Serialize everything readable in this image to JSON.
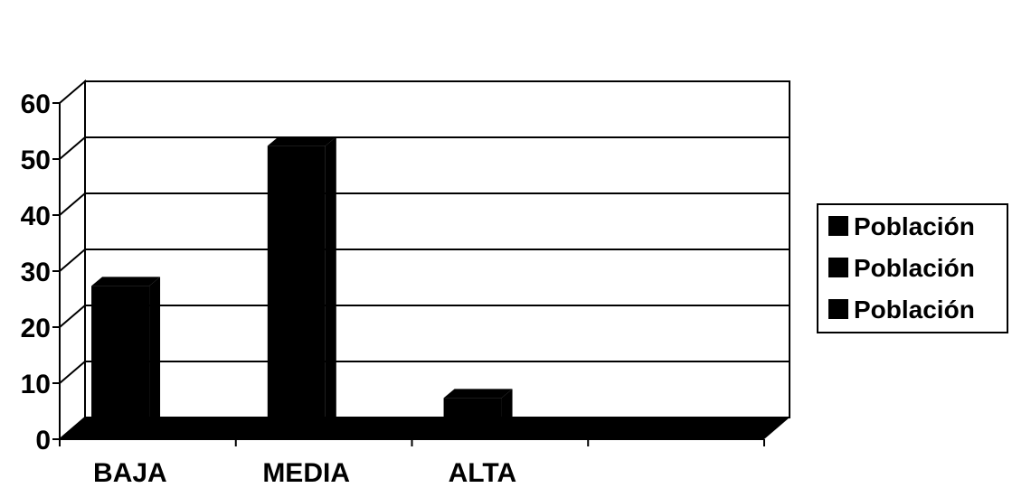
{
  "chart_data": {
    "type": "bar",
    "style": "3d-column",
    "categories": [
      "BAJA",
      "MEDIA",
      "ALTA",
      ""
    ],
    "series": [
      {
        "values": [
          28,
          53,
          8,
          0
        ]
      }
    ],
    "ylim": [
      0,
      60
    ],
    "yticks": [
      "0",
      "10",
      "20",
      "30",
      "40",
      "50",
      "60"
    ],
    "grid": true,
    "legend": {
      "position": "right",
      "entries": [
        "Población",
        "Población",
        "Población"
      ]
    },
    "colors": {
      "bar": "#000000",
      "grid": "#000000",
      "background": "#ffffff"
    }
  }
}
